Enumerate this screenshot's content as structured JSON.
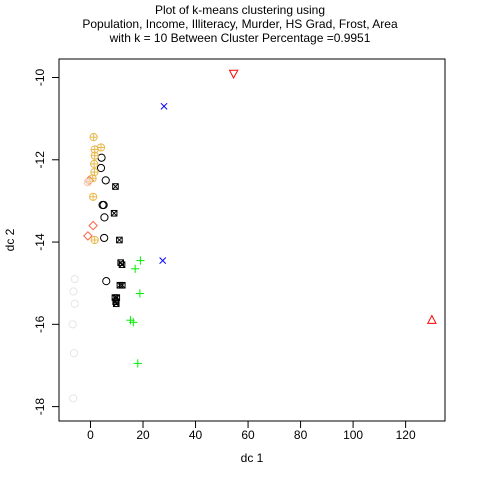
{
  "chart_data": {
    "type": "scatter",
    "title": [
      "Plot of k-means clustering using",
      "Population, Income, Illiteracy, Murder, HS Grad, Frost, Area",
      "with  k = 10 Between Cluster Percentage =0.9951"
    ],
    "xlabel": "dc 1",
    "ylabel": "dc 2",
    "xlim": [
      -12,
      135
    ],
    "ylim": [
      -18.35,
      -9.55
    ],
    "xticks": [
      0,
      20,
      40,
      60,
      80,
      100,
      120
    ],
    "yticks": [
      -10,
      -12,
      -14,
      -16,
      -18
    ],
    "grid": false,
    "legend": "none",
    "series": [
      {
        "symbol": "circle",
        "color": "#000000",
        "points": [
          [
            4.2,
            -11.95
          ],
          [
            4.0,
            -12.2
          ],
          [
            5.8,
            -12.5
          ],
          [
            5.0,
            -13.1
          ],
          [
            4.6,
            -13.1
          ],
          [
            5.3,
            -13.4
          ],
          [
            5.2,
            -13.9
          ],
          [
            6.0,
            -14.95
          ]
        ]
      },
      {
        "symbol": "triangle-up",
        "color": "#ff0000",
        "points": [
          [
            130,
            -15.9
          ]
        ]
      },
      {
        "symbol": "plus",
        "color": "#00ee00",
        "points": [
          [
            19,
            -14.45
          ],
          [
            17,
            -14.65
          ],
          [
            18.8,
            -15.25
          ],
          [
            15.2,
            -15.9
          ],
          [
            16.3,
            -15.95
          ],
          [
            18,
            -16.95
          ]
        ]
      },
      {
        "symbol": "cross",
        "color": "#0000ff",
        "points": [
          [
            28,
            -10.7
          ],
          [
            27.5,
            -14.45
          ]
        ]
      },
      {
        "symbol": "diamond",
        "color": "#ff6347",
        "points": [
          [
            -0.5,
            -12.5
          ],
          [
            1.0,
            -13.6
          ],
          [
            -1.0,
            -13.85
          ]
        ]
      },
      {
        "symbol": "triangle-down",
        "color": "#ff0000",
        "points": [
          [
            54.5,
            -9.9
          ]
        ]
      },
      {
        "symbol": "circle-open-light",
        "color": "#e6e6e6",
        "points": [
          [
            -6,
            -14.9
          ],
          [
            -6.5,
            -15.2
          ],
          [
            -6,
            -15.5
          ],
          [
            -6.8,
            -16.0
          ],
          [
            -6.3,
            -16.7
          ],
          [
            -6.6,
            -17.8
          ]
        ]
      },
      {
        "symbol": "square-x",
        "color": "#000000",
        "points": [
          [
            9.5,
            -12.65
          ],
          [
            9.0,
            -13.3
          ],
          [
            11.0,
            -13.95
          ],
          [
            11.5,
            -14.5
          ],
          [
            12.0,
            -14.55
          ],
          [
            11.2,
            -15.05
          ],
          [
            12.1,
            -15.05
          ],
          [
            9.3,
            -15.35
          ],
          [
            10.0,
            -15.35
          ],
          [
            9.6,
            -15.45
          ],
          [
            9.8,
            -15.5
          ]
        ]
      },
      {
        "symbol": "circle-plus",
        "color": "#e8b84a",
        "points": [
          [
            1.2,
            -11.45
          ],
          [
            4.0,
            -11.7
          ],
          [
            1.6,
            -11.75
          ],
          [
            1.6,
            -11.9
          ],
          [
            1.4,
            -12.1
          ],
          [
            1.5,
            -12.3
          ],
          [
            0.8,
            -12.45
          ],
          [
            1.0,
            -12.9
          ],
          [
            1.6,
            -13.95
          ]
        ]
      },
      {
        "symbol": "circle-star",
        "color": "#f3d3b8",
        "points": [
          [
            -1.0,
            -12.55
          ]
        ]
      }
    ]
  }
}
